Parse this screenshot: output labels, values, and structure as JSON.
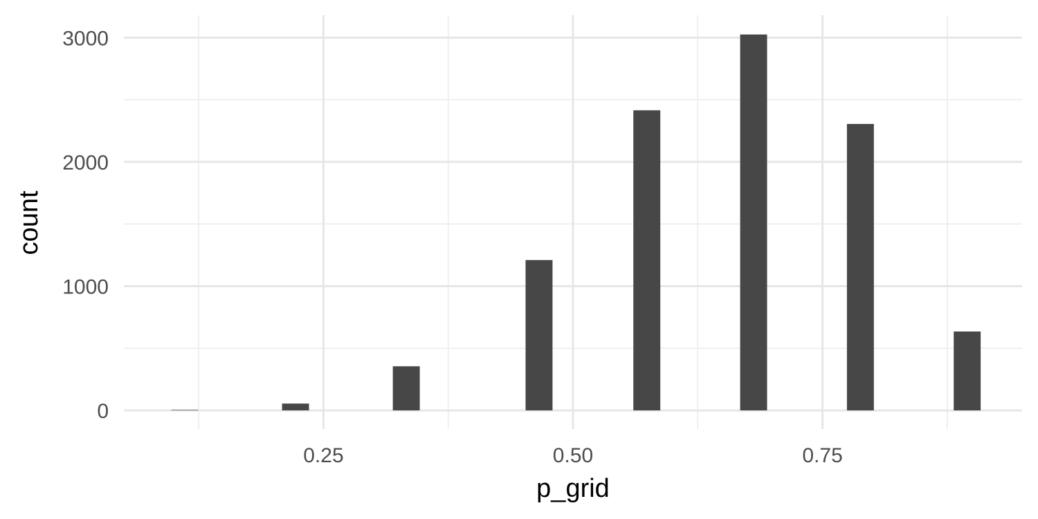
{
  "chart_data": {
    "type": "bar",
    "xlabel": "p_grid",
    "ylabel": "count",
    "xlim": [
      0.05,
      0.95
    ],
    "ylim": [
      -150,
      3180
    ],
    "x_ticks": [
      0.25,
      0.5,
      0.75
    ],
    "x_tick_labels": [
      "0.25",
      "0.50",
      "0.75"
    ],
    "y_ticks": [
      0,
      1000,
      2000,
      3000
    ],
    "y_tick_labels": [
      "0",
      "1000",
      "2000",
      "3000"
    ],
    "bar_width": 0.027,
    "bars": [
      {
        "x": 0.111,
        "count": 4
      },
      {
        "x": 0.222,
        "count": 55
      },
      {
        "x": 0.333,
        "count": 355
      },
      {
        "x": 0.444,
        "count": 0
      },
      {
        "x": 0.466,
        "count": 1210
      },
      {
        "x": 0.574,
        "count": 2415
      },
      {
        "x": 0.681,
        "count": 3025
      },
      {
        "x": 0.788,
        "count": 2305
      },
      {
        "x": 0.895,
        "count": 635
      }
    ],
    "bar_color": "#474747",
    "grid": true,
    "legend": "none"
  }
}
